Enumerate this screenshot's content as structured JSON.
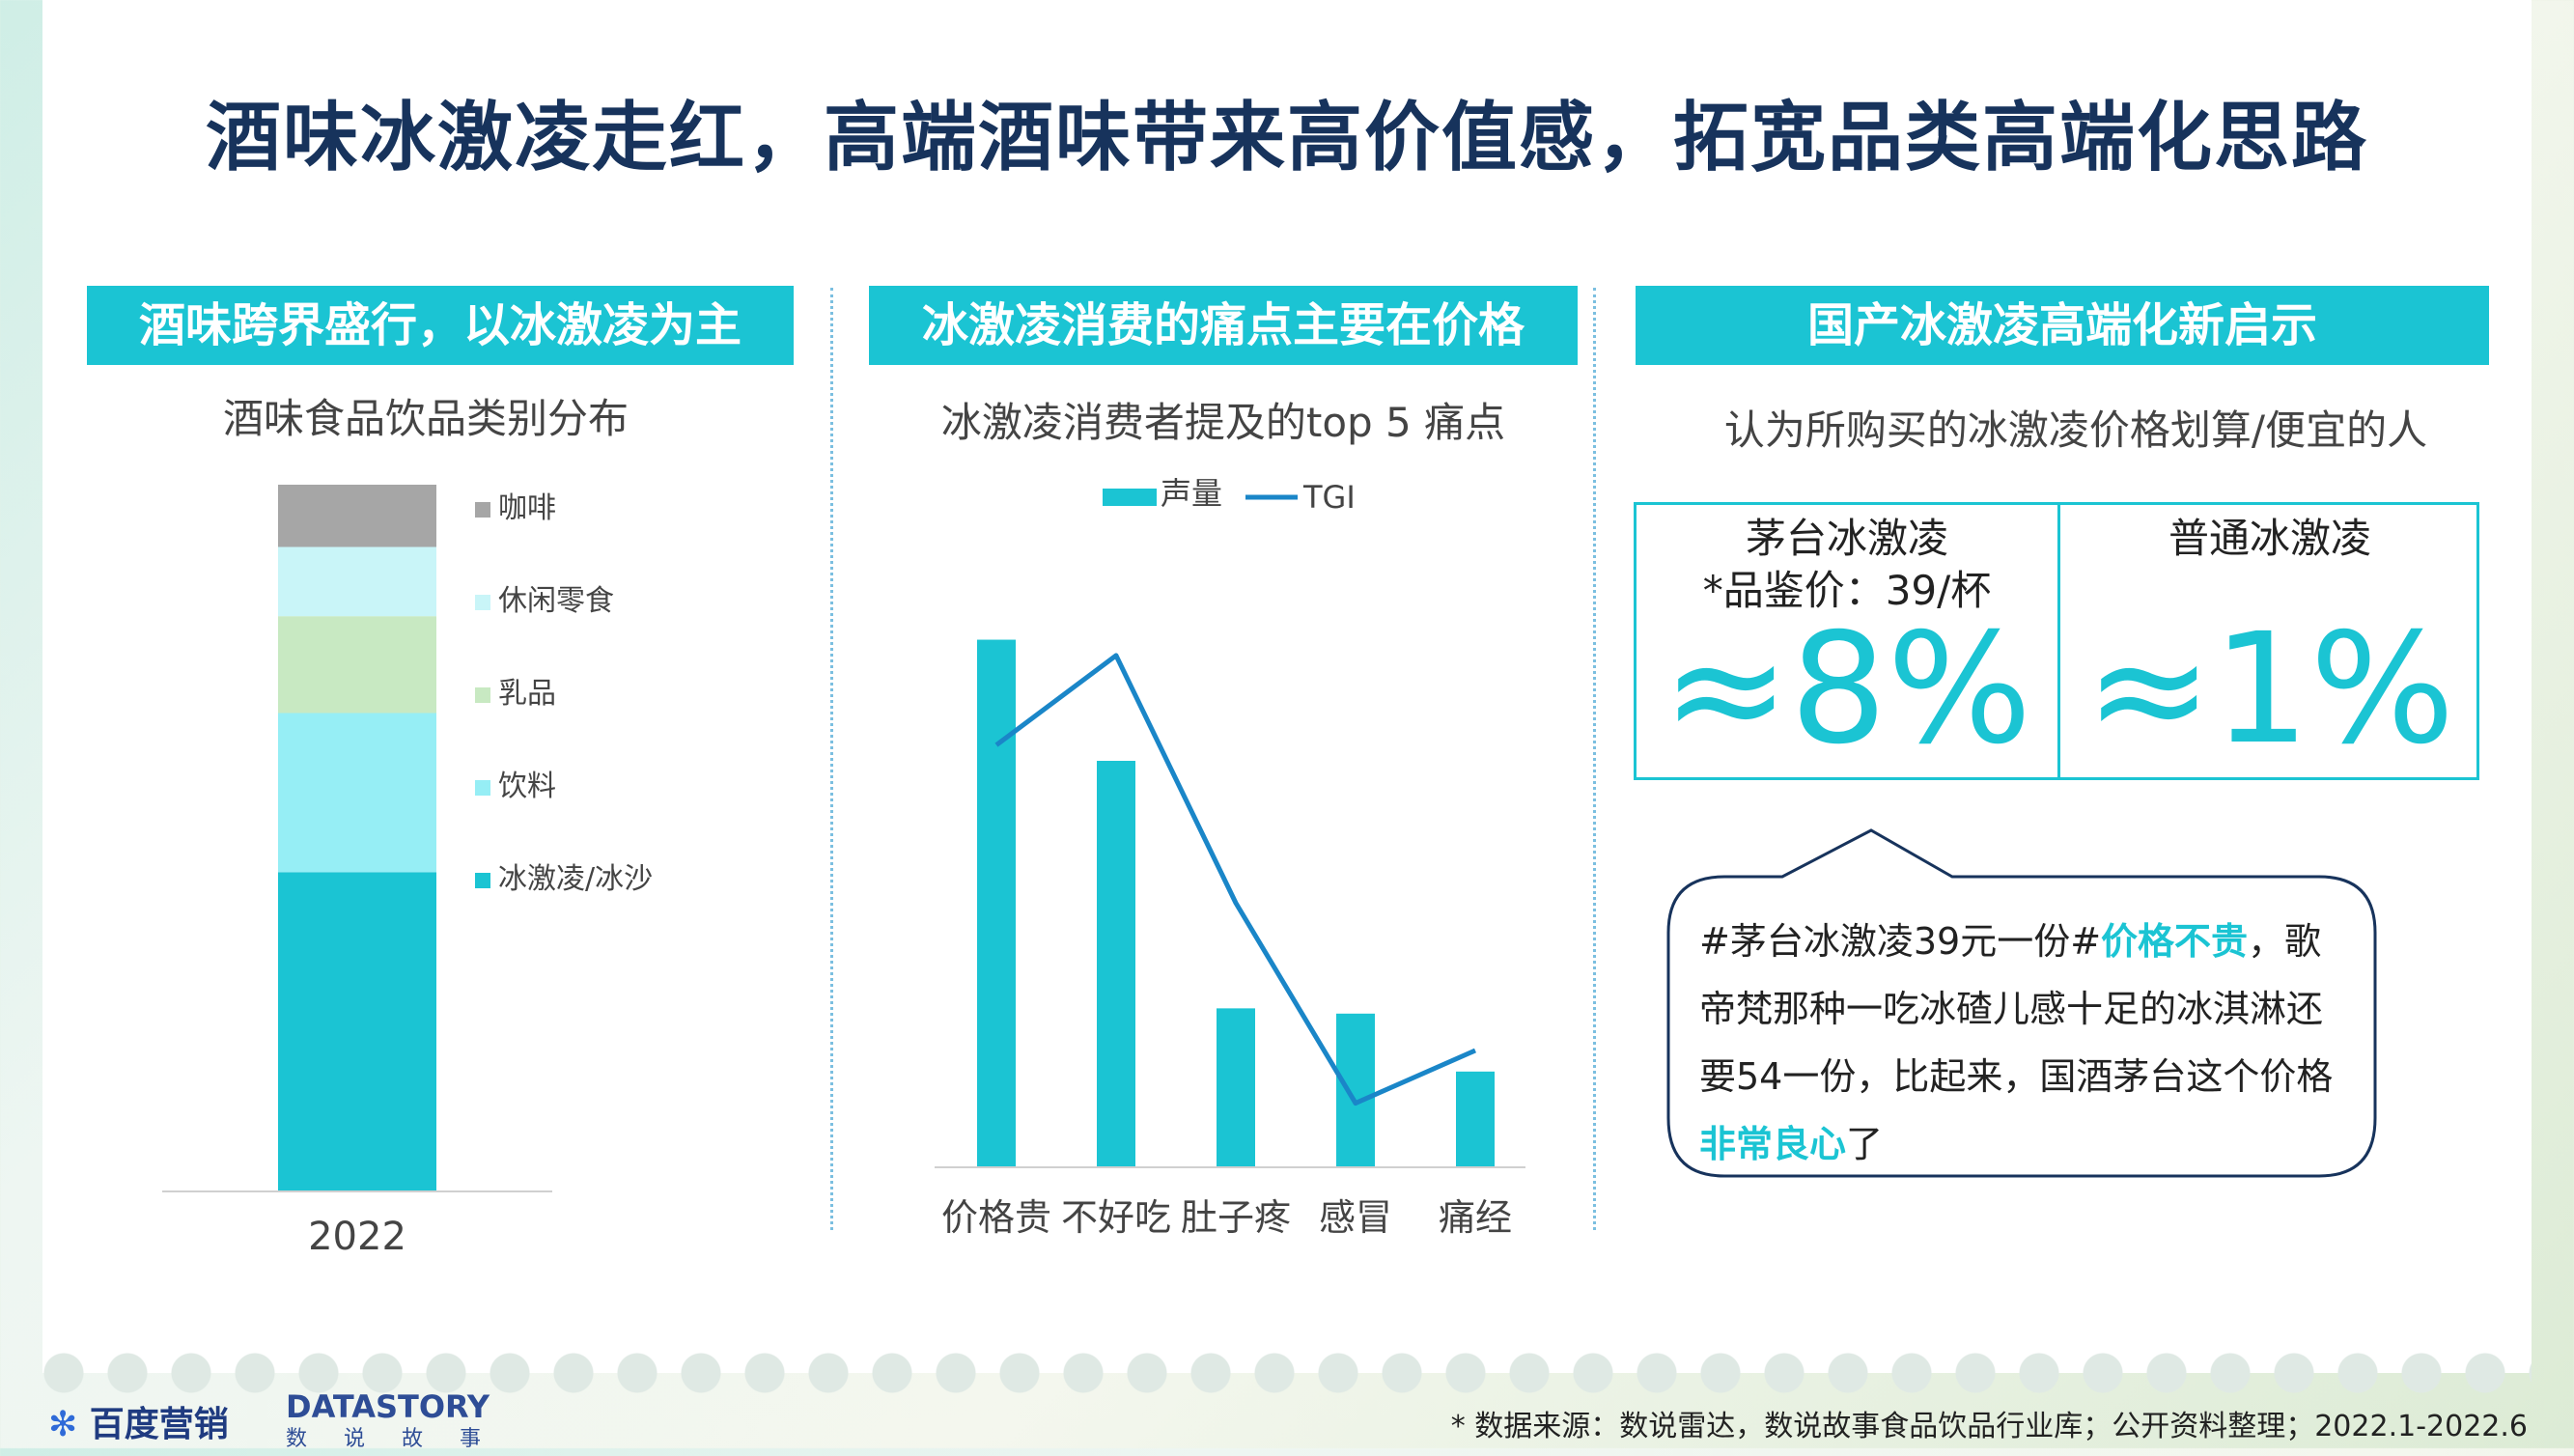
{
  "title": "酒味冰激凌走红，高端酒味带来高价值感，拓宽品类高端化思路",
  "section1": {
    "header": "酒味跨界盛行，以冰激凌为主",
    "subtitle": "酒味食品饮品类别分布"
  },
  "section2": {
    "header": "冰激凌消费的痛点主要在价格",
    "subtitle": "冰激凌消费者提及的top 5 痛点"
  },
  "section3": {
    "header": "国产冰激凌高端化新启示",
    "subtitle": "认为所购买的冰激凌价格划算/便宜的人",
    "left_label_1": "茅台冰激凌",
    "left_label_2": "*品鉴价：39/杯",
    "left_value": "≈8%",
    "right_label": "普通冰激凌",
    "right_value": "≈1%",
    "quote": {
      "part1": "#茅台冰激凌39元一份#",
      "hl1": "价格不贵",
      "part2": "，歌帝梵那种一吃冰碴儿感十足的冰淇淋还要54一份，比起来，国酒茅台这个价格",
      "hl2": "非常良心",
      "part3": "了"
    }
  },
  "footer": {
    "source": "* 数据来源：数说雷达，数说故事食品饮品行业库；公开资料整理；2022.1-2022.6",
    "logo_baidu": "百度营销",
    "logo_ds": "DATASTORY",
    "logo_ds_cn": "数说故事"
  },
  "colors": {
    "accent": "#1bc4d3",
    "title": "#17335c",
    "tgi_line": "#1a86c8"
  },
  "chart_data": [
    {
      "type": "bar",
      "stacked": true,
      "categories": [
        "2022"
      ],
      "series": [
        {
          "name": "冰激凌/冰沙",
          "values": [
            46
          ],
          "color": "#1bc4d3"
        },
        {
          "name": "饮料",
          "values": [
            23
          ],
          "color": "#96eef5"
        },
        {
          "name": "乳品",
          "values": [
            14
          ],
          "color": "#c8e9c2"
        },
        {
          "name": "休闲零食",
          "values": [
            10
          ],
          "color": "#c9f5f8"
        },
        {
          "name": "咖啡",
          "values": [
            9
          ],
          "color": "#a6a6a6"
        }
      ],
      "legend_order": [
        "咖啡",
        "休闲零食",
        "乳品",
        "饮料",
        "冰激凌/冰沙"
      ],
      "legend": "right"
    },
    {
      "type": "bar",
      "categories": [
        "价格贵",
        "不好吃",
        "肚子疼",
        "感冒",
        "痛经"
      ],
      "series": [
        {
          "name": "声量",
          "type": "bar",
          "values": [
            100,
            77,
            30,
            29,
            18
          ],
          "color": "#1bc4d3"
        },
        {
          "name": "TGI",
          "type": "line",
          "values": [
            80,
            97,
            50,
            12,
            22
          ],
          "color": "#1a86c8"
        }
      ],
      "ylim": [
        0,
        110
      ],
      "legend": "top"
    }
  ]
}
